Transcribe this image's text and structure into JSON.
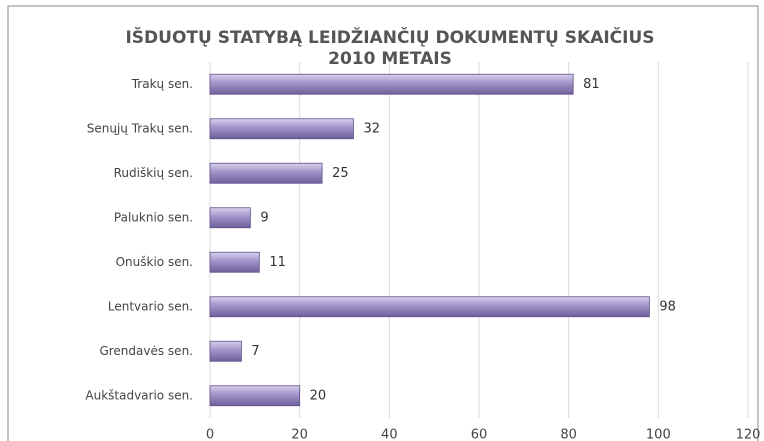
{
  "chart_data": {
    "type": "bar",
    "orientation": "horizontal",
    "title": [
      "IŠDUOTŲ STATYBĄ LEIDŽIANČIŲ DOKUMENTŲ SKAIČIUS",
      "2010  METAIS"
    ],
    "categories": [
      "Trakų sen.",
      "Senųjų Trakų sen.",
      "Rudiškių sen.",
      "Paluknio sen.",
      "Onuškio sen.",
      "Lentvario sen.",
      "Grendavės sen.",
      "Aukštadvario sen."
    ],
    "values": [
      81,
      32,
      25,
      9,
      11,
      98,
      7,
      20
    ],
    "color": "#9d8fc2",
    "xlim": [
      0,
      120
    ],
    "xticks": [
      0,
      20,
      40,
      60,
      80,
      100,
      120
    ],
    "grid": true
  }
}
